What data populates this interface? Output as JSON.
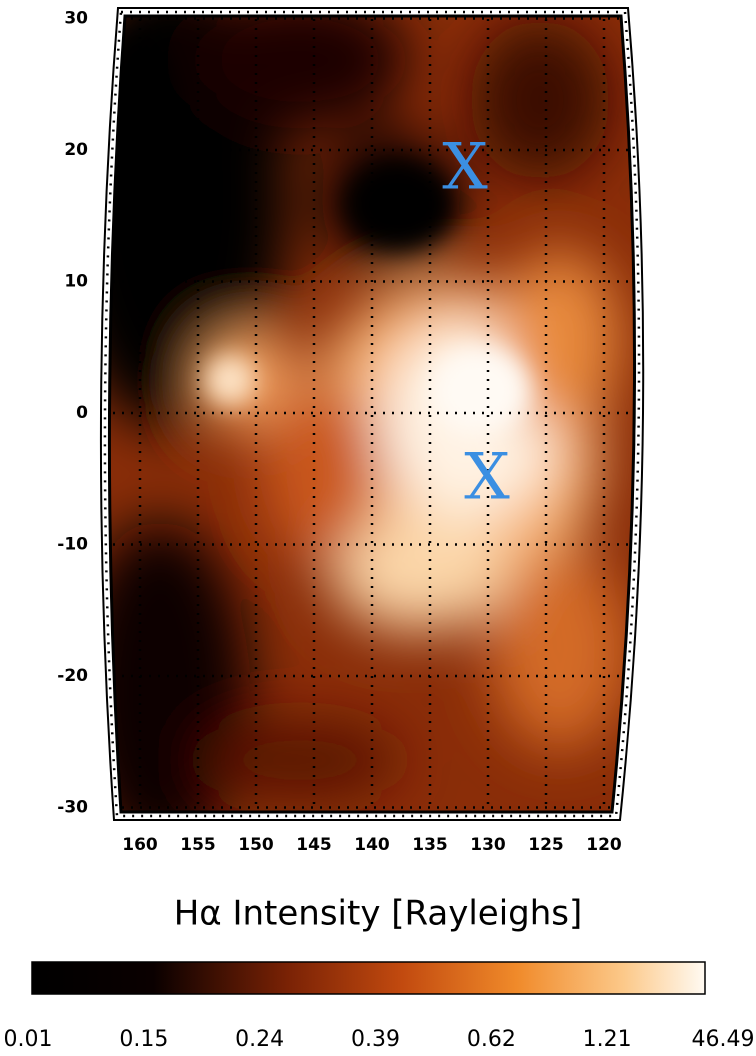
{
  "map": {
    "yticks": [
      30,
      20,
      10,
      0,
      -10,
      -20,
      -30
    ],
    "xticks": [
      160,
      155,
      150,
      145,
      140,
      135,
      130,
      125,
      120
    ],
    "markers": [
      "X",
      "X"
    ],
    "colorbar": {
      "title": "Hα Intensity [Rayleighs]",
      "ticks": [
        "0.01",
        "0.15",
        "0.24",
        "0.39",
        "0.62",
        "1.21",
        "46.49"
      ]
    }
  }
}
